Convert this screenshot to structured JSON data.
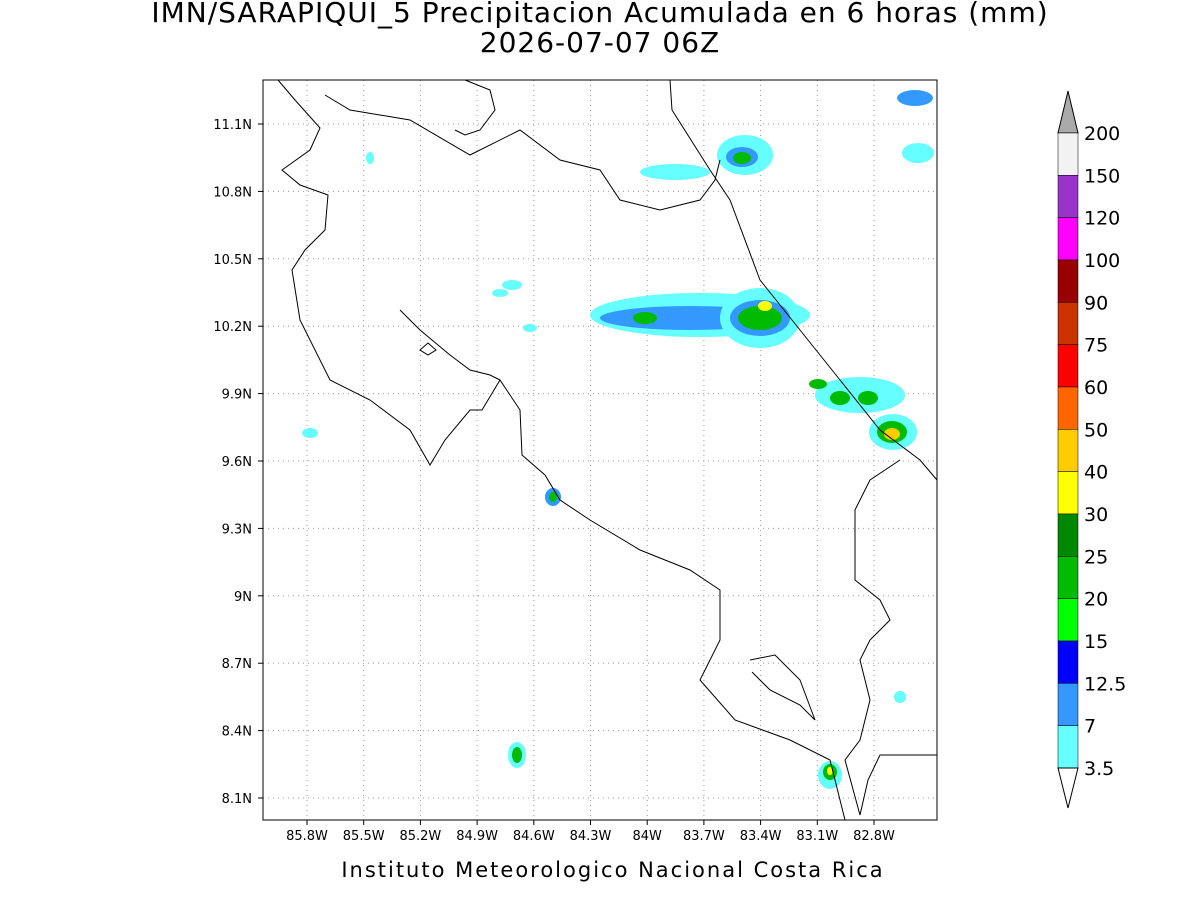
{
  "title": "IMN/SARAPIQUI_5 Precipitacion Acumulada en 6 horas (mm)",
  "subtitle": "2026-07-07 06Z",
  "map": {
    "lon_labels": [
      "85.8W",
      "85.5W",
      "85.2W",
      "84.9W",
      "84.6W",
      "84.3W",
      "84W",
      "83.7W",
      "83.4W",
      "83.1W",
      "82.8W"
    ],
    "lat_labels": [
      "11.1N",
      "10.8N",
      "10.5N",
      "10.2N",
      "9.9N",
      "9.6N",
      "9.3N",
      "9N",
      "8.7N",
      "8.4N",
      "8.1N"
    ],
    "grid": true
  },
  "colorbar": {
    "levels": [
      200,
      150,
      120,
      100,
      90,
      75,
      60,
      50,
      40,
      30,
      25,
      20,
      15,
      12.5,
      7,
      3.5
    ],
    "colors": [
      "#f2f2f2",
      "#9933cc",
      "#ff00ff",
      "#990000",
      "#cc3300",
      "#ff0000",
      "#ff6600",
      "#ffcc00",
      "#ffff00",
      "#008800",
      "#00bb00",
      "#00ff00",
      "#0000ff",
      "#3399ff",
      "#66ffff"
    ],
    "over_color": "#aaaaaa",
    "under_color": "#ffffff"
  },
  "footer": "Instituto Meteorologico Nacional Costa Rica"
}
